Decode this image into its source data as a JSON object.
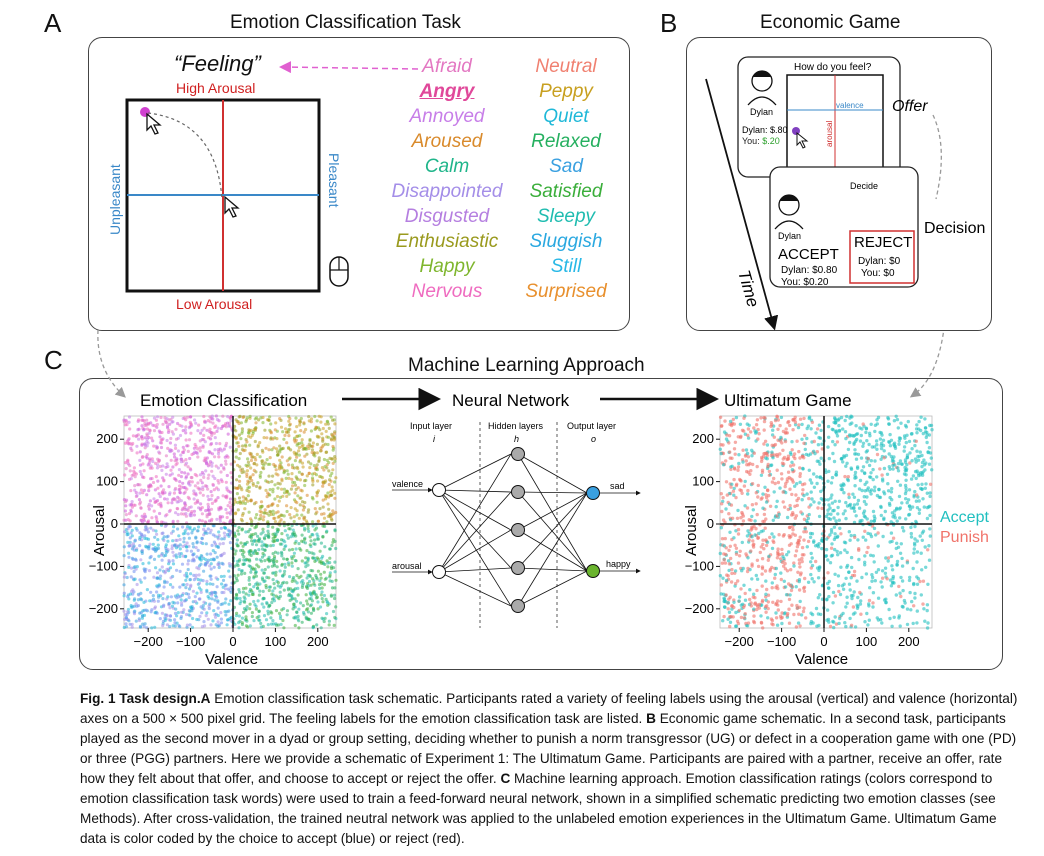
{
  "panel_a": {
    "letter": "A",
    "title": "Emotion Classification Task",
    "feeling_label": "“Feeling”",
    "high_arousal": "High Arousal",
    "low_arousal": "Low Arousal",
    "unpleasant": "Unpleasant",
    "pleasant": "Pleasant",
    "words_left": [
      {
        "text": "Afraid",
        "color": "#e377c2"
      },
      {
        "text": "Angry",
        "color": "#e0489a"
      },
      {
        "text": "Annoyed",
        "color": "#c77ee8"
      },
      {
        "text": "Aroused",
        "color": "#d98a2b"
      },
      {
        "text": "Calm",
        "color": "#1fb58a"
      },
      {
        "text": "Disappointed",
        "color": "#a48ee8"
      },
      {
        "text": "Disgusted",
        "color": "#b57fe0"
      },
      {
        "text": "Enthusiastic",
        "color": "#9a9a1e"
      },
      {
        "text": "Happy",
        "color": "#7fb62e"
      },
      {
        "text": "Nervous",
        "color": "#ef6cc0"
      }
    ],
    "words_right": [
      {
        "text": "Neutral",
        "color": "#f08070"
      },
      {
        "text": "Peppy",
        "color": "#c8a020"
      },
      {
        "text": "Quiet",
        "color": "#1fb8d8"
      },
      {
        "text": "Relaxed",
        "color": "#26b060"
      },
      {
        "text": "Sad",
        "color": "#3aa0e0"
      },
      {
        "text": "Satisfied",
        "color": "#3aae3a"
      },
      {
        "text": "Sleepy",
        "color": "#1fbcb0"
      },
      {
        "text": "Sluggish",
        "color": "#2aa8e0"
      },
      {
        "text": "Still",
        "color": "#28b8e6"
      },
      {
        "text": "Surprised",
        "color": "#e8902e"
      }
    ]
  },
  "panel_b": {
    "letter": "B",
    "title": "Economic Game",
    "question": "How do you feel?",
    "name": "Dylan",
    "offer_dylan": "Dylan: $.80",
    "offer_you": "You: $.20",
    "valence": "valence",
    "arousal": "arousal",
    "offer": "Offer",
    "decide": "Decide",
    "decision": "Decision",
    "accept": "ACCEPT",
    "reject": "REJECT",
    "accept_dylan": "Dylan: $0.80",
    "accept_you": "You: $0.20",
    "reject_dylan": "Dylan: $0",
    "reject_you": "You: $0",
    "time": "Time"
  },
  "panel_c": {
    "letter": "C",
    "title": "Machine Learning Approach",
    "emotion_classification": "Emotion Classification",
    "neural_network": "Neural Network",
    "ultimatum_game": "Ultimatum Game",
    "input_layer": "Input layer",
    "input_sym": "i",
    "hidden_layers": "Hidden layers",
    "hidden_sym": "h",
    "output_layer": "Output layer",
    "output_sym": "o",
    "valence_in": "valence",
    "arousal_in": "arousal",
    "sad": "sad",
    "happy": "happy",
    "accept_label": "Accept",
    "punish_label": "Punish",
    "accept_color": "#1fbfbf",
    "punish_color": "#f0736a"
  },
  "chart_data": [
    {
      "type": "scatter",
      "title": "Emotion Classification",
      "xlabel": "Valence",
      "ylabel": "Arousal",
      "xlim": [
        -250,
        250
      ],
      "ylim": [
        -250,
        250
      ],
      "xticks": [
        "−200",
        "−100",
        "0",
        "100",
        "200"
      ],
      "yticks": [
        "200",
        "100",
        "0",
        "−100",
        "−200"
      ]
    },
    {
      "type": "scatter",
      "title": "Ultimatum Game",
      "xlabel": "Valence",
      "ylabel": "Arousal",
      "xlim": [
        -250,
        250
      ],
      "ylim": [
        -250,
        250
      ],
      "xticks": [
        "−200",
        "−100",
        "0",
        "100",
        "200"
      ],
      "yticks": [
        "200",
        "100",
        "0",
        "−100",
        "−200"
      ],
      "series": [
        {
          "name": "Accept"
        },
        {
          "name": "Punish"
        }
      ]
    }
  ],
  "caption": {
    "fig": "Fig. 1 Task design.",
    "a_letter": "A",
    "a_text": " Emotion classification task schematic. Participants rated a variety of feeling labels using the arousal (vertical) and valence (horizontal) axes on a 500 × 500 pixel grid. The feeling labels for the emotion classification task are listed. ",
    "b_letter": "B",
    "b_text": " Economic game schematic. In a second task, participants played as the second mover in a dyad or group setting, deciding whether to punish a norm transgressor (UG) or defect in a cooperation game with one (PD) or three (PGG) partners. Here we provide a schematic of Experiment 1: The Ultimatum Game. Participants are paired with a partner, receive an offer, rate how they felt about that offer, and choose to accept or reject the offer. ",
    "c_letter": "C",
    "c_text": " Machine learning approach. Emotion classification ratings (colors correspond to emotion classification task words) were used to train a feed-forward neural network, shown in a simplified schematic predicting two emotion classes (see Methods). After cross-validation, the trained neutral network was applied to the unlabeled emotion experiences in the Ultimatum Game. Ultimatum Game data is color coded by the choice to accept (blue) or reject (red)."
  }
}
